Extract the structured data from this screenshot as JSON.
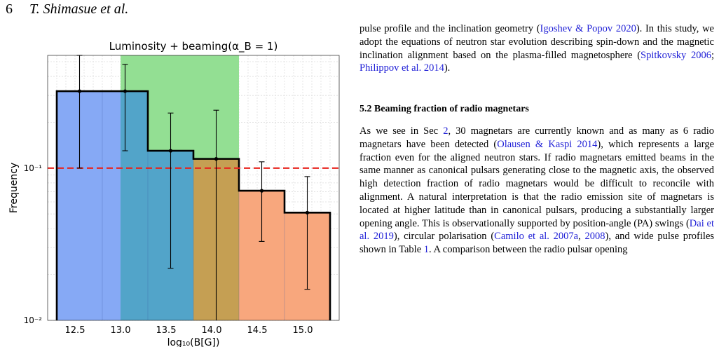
{
  "header": {
    "page_number": "6",
    "authors": "T. Shimasue et al."
  },
  "figure": {
    "chart_data": {
      "type": "bar",
      "title": "Luminosity + beaming(α_B = 1)",
      "xlabel": "log₁₀(B[G])",
      "ylabel": "Frequency",
      "yscale": "log",
      "xlim": [
        12.2,
        15.4
      ],
      "ylim": [
        0.01,
        0.55
      ],
      "xticks": [
        12.5,
        13.0,
        13.5,
        14.0,
        14.5,
        15.0
      ],
      "xtick_labels": [
        "12.5",
        "13.0",
        "13.5",
        "14.0",
        "14.5",
        "15.0"
      ],
      "yticks": [
        0.01,
        0.1
      ],
      "ytick_labels": [
        "10⁻²",
        "10⁻¹"
      ],
      "bins": [
        {
          "x0": 12.3,
          "x1": 12.8,
          "value": 0.32,
          "err_low": 0.1,
          "err_high": 0.55
        },
        {
          "x0": 12.8,
          "x1": 13.3,
          "value": 0.32,
          "err_low": 0.13,
          "err_high": 0.48
        },
        {
          "x0": 13.3,
          "x1": 13.8,
          "value": 0.13,
          "err_low": 0.022,
          "err_high": 0.23
        },
        {
          "x0": 13.8,
          "x1": 14.3,
          "value": 0.115,
          "err_low": 0.008,
          "err_high": 0.24
        },
        {
          "x0": 14.3,
          "x1": 14.8,
          "value": 0.071,
          "err_low": 0.033,
          "err_high": 0.11
        },
        {
          "x0": 14.8,
          "x1": 15.3,
          "value": 0.051,
          "err_low": 0.016,
          "err_high": 0.088
        }
      ],
      "reference_line": 0.1,
      "green_band": [
        13.0,
        14.3
      ],
      "colors": {
        "blue": "#86a9f5",
        "green": "#93df93",
        "teal": "#52a4c9",
        "gold": "#c59f53",
        "orange": "#f8a77d",
        "reference": "#e8221c"
      },
      "grid": true
    }
  },
  "text": {
    "p1": [
      {
        "t": "pulse profile and the inclination geometry ("
      },
      {
        "t": "Igoshev & Popov 2020",
        "link": true
      },
      {
        "t": "). In this study, we adopt the equations of neutron star evolution describing spin-down and the magnetic inclination alignment based on the plasma-filled magnetosphere ("
      },
      {
        "t": "Spitkovsky 2006",
        "link": true
      },
      {
        "t": "; "
      },
      {
        "t": "Philippov et al. 2014",
        "link": true
      },
      {
        "t": ")."
      }
    ],
    "section_title": "5.2  Beaming fraction of radio magnetars",
    "p2": [
      {
        "t": "As we see in Sec "
      },
      {
        "t": "2",
        "link": true
      },
      {
        "t": ", 30 magnetars are currently known and as many as 6 radio magnetars have been detected ("
      },
      {
        "t": "Olausen & Kaspi 2014",
        "link": true
      },
      {
        "t": "), which represents a large fraction even for the aligned neutron stars. If radio magnetars emitted beams in the same manner as canonical pulsars generating close to the magnetic axis, the observed high detection fraction of radio magnetars would be difficult to reconcile with alignment. A natural interpretation is that the radio emission site of magnetars is located at higher latitude than in canonical pulsars, producing a substantially larger opening angle. This is observationally supported by position-angle (PA) swings ("
      },
      {
        "t": "Dai et al. 2019",
        "link": true
      },
      {
        "t": "), circular polarisation ("
      },
      {
        "t": "Camilo et al. 2007a",
        "link": true
      },
      {
        "t": ", "
      },
      {
        "t": "2008",
        "link": true
      },
      {
        "t": "), and wide pulse profiles shown in Table "
      },
      {
        "t": "1",
        "link": true
      },
      {
        "t": ". A comparison between the radio pulsar opening"
      }
    ]
  }
}
